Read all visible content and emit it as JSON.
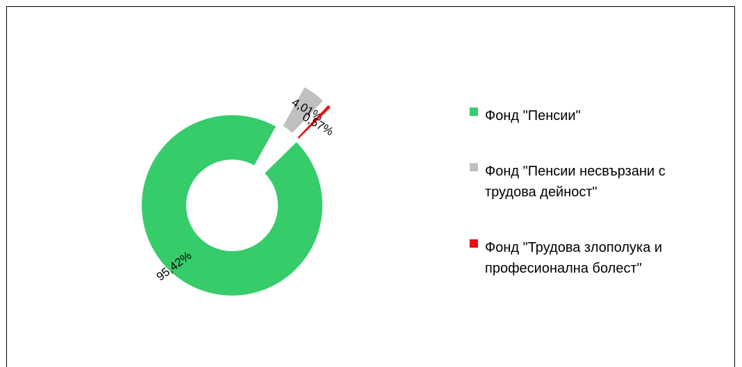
{
  "chart_data": {
    "type": "pie",
    "donut": true,
    "exploded_slices": [
      1,
      2
    ],
    "slices": [
      {
        "name": "Фонд \"Пенсии\"",
        "value": 95.42,
        "label": "95,42%",
        "color": "#36cc6a"
      },
      {
        "name": "Фонд \"Пенсии несвързани с трудова дейност\"",
        "value": 4.01,
        "label": "4,01%",
        "color": "#c0c0c0"
      },
      {
        "name": "Фонд \"Трудова злополука и професионална болест\"",
        "value": 0.57,
        "label": "0,57%",
        "color": "#e81010"
      }
    ],
    "legend": {
      "placement": "right",
      "items": [
        {
          "lines": [
            "Фонд \"Пенсии\""
          ],
          "color": "#36cc6a"
        },
        {
          "lines": [
            "Фонд \"Пенсии несвързани с",
            "трудова дейност\""
          ],
          "color": "#c0c0c0"
        },
        {
          "lines": [
            "Фонд \"Трудова злополука и",
            "професионална болест\""
          ],
          "color": "#e81010"
        }
      ]
    }
  }
}
